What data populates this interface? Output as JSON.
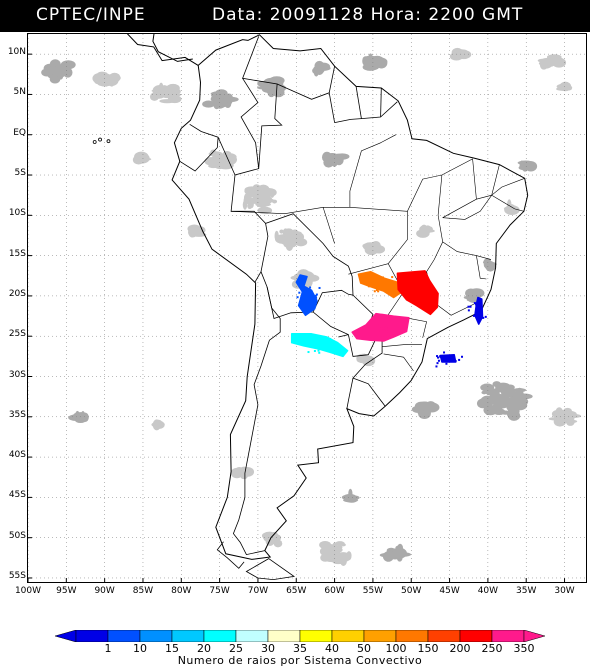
{
  "header": {
    "agency": "CPTEC/INPE",
    "datetime": "Data: 20091128 Hora: 2200 GMT"
  },
  "axes": {
    "lat_labels": [
      "10N",
      "5N",
      "EQ",
      "5S",
      "10S",
      "15S",
      "20S",
      "25S",
      "30S",
      "35S",
      "40S",
      "45S",
      "50S",
      "55S"
    ],
    "lon_labels": [
      "100W",
      "95W",
      "90W",
      "85W",
      "80W",
      "75W",
      "70W",
      "65W",
      "60W",
      "55W",
      "50W",
      "45W",
      "40W",
      "35W",
      "30W"
    ]
  },
  "colorbar": {
    "title": "Numero de raios por Sistema Convectivo",
    "labels": [
      "1",
      "10",
      "15",
      "20",
      "25",
      "30",
      "35",
      "40",
      "50",
      "100",
      "150",
      "200",
      "250",
      "350"
    ],
    "colors": [
      "#0000e6",
      "#0050ff",
      "#0090ff",
      "#00c8ff",
      "#00ffff",
      "#c0ffff",
      "#ffffc8",
      "#ffff00",
      "#ffd000",
      "#ffa000",
      "#ff7800",
      "#ff4000",
      "#ff0000",
      "#ff1a8c"
    ]
  },
  "map_colors": {
    "cloud": "#c8c8c8",
    "cloud_dark": "#aaaaaa",
    "coast": "#000000",
    "grid": "#777777"
  },
  "storm_systems": [
    {
      "label": "Bolivia-Paraguay border",
      "color_index": 1
    },
    {
      "label": "Northern Argentina",
      "color_index": 4
    },
    {
      "label": "Mato Grosso do Sul",
      "color_index": 10
    },
    {
      "label": "Sao Paulo",
      "color_index": 12
    },
    {
      "label": "Parana",
      "color_index": 13
    },
    {
      "label": "Rio de Janeiro coast",
      "color_index": 0
    },
    {
      "label": "Offshore Santa Catarina",
      "color_index": 0
    }
  ]
}
